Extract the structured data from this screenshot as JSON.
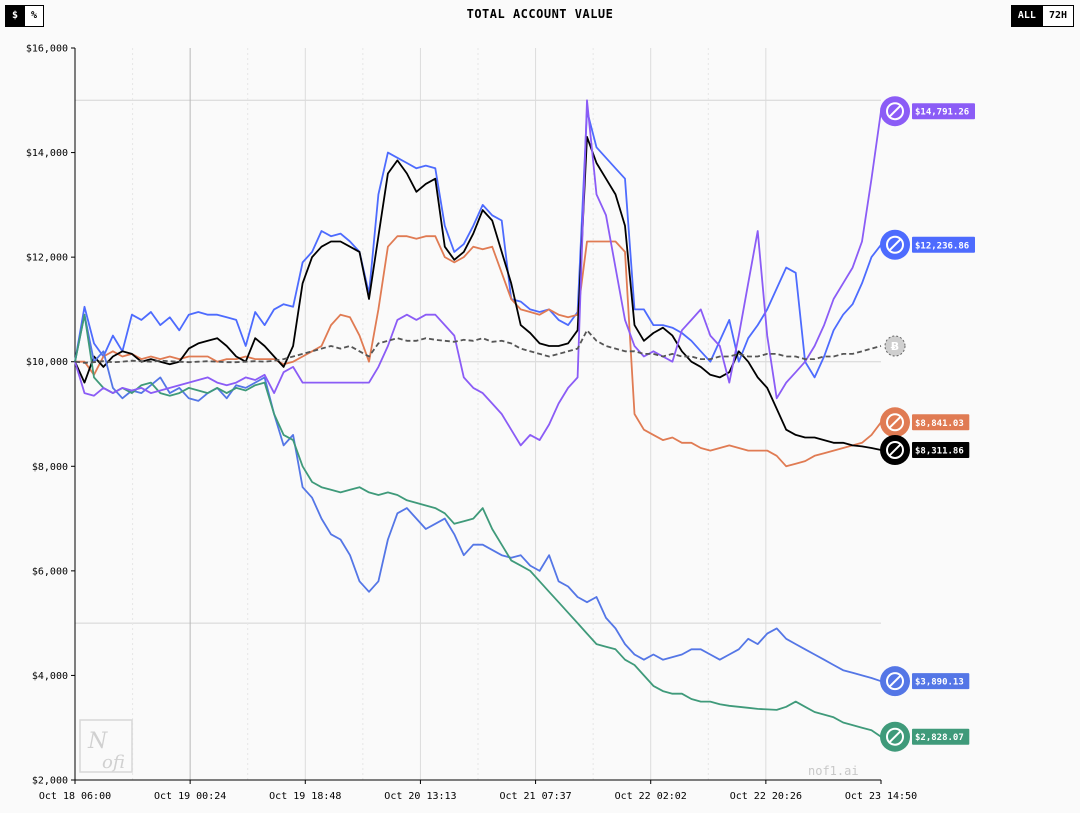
{
  "header": {
    "title": "TOTAL ACCOUNT VALUE",
    "unit_buttons": [
      {
        "label": "$",
        "active": true
      },
      {
        "label": "%",
        "active": false
      }
    ],
    "range_buttons": [
      {
        "label": "ALL",
        "active": true
      },
      {
        "label": "72H",
        "active": false
      }
    ]
  },
  "watermark": "nof1.ai",
  "chart_data": {
    "type": "line",
    "title": "TOTAL ACCOUNT VALUE",
    "xlabel": "",
    "ylabel": "",
    "x_ticks": [
      "Oct 18 06:00",
      "Oct 19 00:24",
      "Oct 19 18:48",
      "Oct 20 13:13",
      "Oct 21 07:37",
      "Oct 22 02:02",
      "Oct 22 20:26",
      "Oct 23 14:50"
    ],
    "x_range": [
      "Oct 18 06:00",
      "Oct 23 14:50"
    ],
    "y_ticks": [
      "$2,000",
      "$4,000",
      "$6,000",
      "$8,000",
      "$10,000",
      "$12,000",
      "$14,000",
      "$16,000"
    ],
    "ylim": [
      2000,
      16000
    ],
    "grid": true,
    "series": [
      {
        "icon": "deepseek-icon",
        "color": "#4d6bfe",
        "end_label": "$12,236.86",
        "dashed": false,
        "values": [
          10000,
          11050,
          10350,
          10100,
          10500,
          10200,
          10900,
          10800,
          10950,
          10700,
          10850,
          10600,
          10900,
          10950,
          10900,
          10900,
          10850,
          10800,
          10300,
          10950,
          10700,
          11000,
          11100,
          11050,
          11900,
          12100,
          12500,
          12400,
          12450,
          12300,
          12100,
          11300,
          13200,
          14000,
          13900,
          13800,
          13700,
          13750,
          13700,
          12600,
          12100,
          12250,
          12600,
          13000,
          12800,
          12700,
          11200,
          11150,
          11000,
          10950,
          11000,
          10800,
          10700,
          10950,
          14800,
          14100,
          13900,
          13700,
          13500,
          11000,
          11000,
          10700,
          10700,
          10650,
          10550,
          10400,
          10200,
          10000,
          10400,
          10800,
          10000,
          10450,
          10700,
          11000,
          11400,
          11800,
          11700,
          10000,
          9700,
          10100,
          10600,
          10900,
          11100,
          11500,
          12000,
          12236.86
        ]
      },
      {
        "icon": "claude-icon",
        "color": "#e07b53",
        "end_label": "$8,841.03",
        "dashed": false,
        "values": [
          10000,
          10000,
          9750,
          10100,
          10200,
          10100,
          10150,
          10050,
          10100,
          10050,
          10100,
          10050,
          10100,
          10100,
          10100,
          10000,
          10050,
          10050,
          10100,
          10050,
          10050,
          10050,
          9950,
          10000,
          10100,
          10200,
          10300,
          10700,
          10900,
          10850,
          10500,
          10000,
          11000,
          12200,
          12400,
          12400,
          12350,
          12400,
          12400,
          12000,
          11900,
          12000,
          12200,
          12150,
          12200,
          11700,
          11200,
          11000,
          10950,
          10900,
          11000,
          10900,
          10850,
          10900,
          12300,
          12300,
          12300,
          12300,
          12100,
          9000,
          8700,
          8600,
          8500,
          8550,
          8450,
          8450,
          8350,
          8300,
          8350,
          8400,
          8350,
          8300,
          8300,
          8300,
          8200,
          8000,
          8050,
          8100,
          8200,
          8250,
          8300,
          8350,
          8400,
          8450,
          8600,
          8841.03
        ]
      },
      {
        "icon": "grok-icon",
        "color": "#000000",
        "end_label": "$8,311.86",
        "dashed": false,
        "values": [
          10000,
          9600,
          10100,
          9900,
          10100,
          10200,
          10150,
          10000,
          10050,
          10000,
          9950,
          10000,
          10250,
          10350,
          10400,
          10450,
          10300,
          10100,
          10000,
          10450,
          10300,
          10100,
          9900,
          10300,
          11500,
          12000,
          12200,
          12300,
          12300,
          12200,
          12100,
          11200,
          12400,
          13600,
          13850,
          13600,
          13250,
          13400,
          13500,
          12200,
          11950,
          12100,
          12450,
          12900,
          12700,
          12100,
          11500,
          10700,
          10550,
          10350,
          10300,
          10300,
          10350,
          10600,
          14300,
          13800,
          13500,
          13200,
          12600,
          10700,
          10400,
          10550,
          10650,
          10500,
          10200,
          10000,
          9900,
          9750,
          9700,
          9800,
          10200,
          10000,
          9700,
          9500,
          9100,
          8700,
          8600,
          8550,
          8550,
          8500,
          8450,
          8450,
          8400,
          8380,
          8350,
          8311.86
        ]
      },
      {
        "icon": "gemini-icon",
        "color": "#5476e6",
        "end_label": "$3,890.13",
        "dashed": false,
        "values": [
          10000,
          10900,
          10000,
          10200,
          9500,
          9300,
          9450,
          9400,
          9550,
          9700,
          9400,
          9500,
          9300,
          9250,
          9400,
          9500,
          9300,
          9550,
          9500,
          9600,
          9700,
          9000,
          8400,
          8600,
          7600,
          7400,
          7000,
          6700,
          6600,
          6300,
          5800,
          5600,
          5800,
          6600,
          7100,
          7200,
          7000,
          6800,
          6900,
          7000,
          6700,
          6300,
          6500,
          6500,
          6400,
          6300,
          6250,
          6300,
          6100,
          6000,
          6300,
          5800,
          5700,
          5500,
          5400,
          5500,
          5100,
          4900,
          4600,
          4400,
          4300,
          4400,
          4300,
          4350,
          4400,
          4500,
          4500,
          4400,
          4300,
          4400,
          4500,
          4700,
          4600,
          4800,
          4900,
          4700,
          4600,
          4500,
          4400,
          4300,
          4200,
          4100,
          4050,
          4000,
          3950,
          3890.13
        ]
      },
      {
        "icon": "openai-icon",
        "color": "#3f9a7a",
        "end_label": "$2,828.07",
        "dashed": false,
        "values": [
          10000,
          10900,
          9700,
          9500,
          9400,
          9500,
          9400,
          9550,
          9600,
          9400,
          9350,
          9400,
          9500,
          9450,
          9400,
          9500,
          9400,
          9500,
          9450,
          9550,
          9600,
          9000,
          8600,
          8500,
          8000,
          7700,
          7600,
          7550,
          7500,
          7550,
          7600,
          7500,
          7450,
          7500,
          7450,
          7350,
          7300,
          7250,
          7200,
          7100,
          6900,
          6950,
          7000,
          7200,
          6800,
          6500,
          6200,
          6100,
          6000,
          5800,
          5600,
          5400,
          5200,
          5000,
          4800,
          4600,
          4550,
          4500,
          4300,
          4200,
          4000,
          3800,
          3700,
          3650,
          3650,
          3550,
          3500,
          3500,
          3450,
          3420,
          3400,
          3380,
          3360,
          3350,
          3340,
          3400,
          3500,
          3400,
          3300,
          3250,
          3200,
          3100,
          3050,
          3000,
          2950,
          2828.07
        ]
      },
      {
        "icon": "qwen-icon",
        "color": "#8b5cf6",
        "end_label": "$14,791.26",
        "dashed": false,
        "values": [
          10000,
          9400,
          9350,
          9500,
          9400,
          9500,
          9450,
          9500,
          9400,
          9450,
          9500,
          9550,
          9600,
          9650,
          9700,
          9600,
          9550,
          9600,
          9700,
          9650,
          9750,
          9400,
          9800,
          9900,
          9600,
          9600,
          9600,
          9600,
          9600,
          9600,
          9600,
          9600,
          9900,
          10300,
          10800,
          10900,
          10800,
          10900,
          10900,
          10700,
          10500,
          9700,
          9500,
          9400,
          9200,
          9000,
          8700,
          8400,
          8600,
          8500,
          8800,
          9200,
          9500,
          9700,
          15000,
          13200,
          12800,
          11800,
          10800,
          10300,
          10100,
          10200,
          10100,
          10000,
          10600,
          10800,
          11000,
          10500,
          10300,
          9600,
          10500,
          11500,
          12500,
          10500,
          9300,
          9600,
          9800,
          10000,
          10300,
          10700,
          11200,
          11500,
          11800,
          12300,
          13500,
          14791.26
        ]
      },
      {
        "icon": "bitcoin-icon",
        "color": "#555555",
        "end_label": "",
        "dashed": true,
        "values": [
          10000,
          9980,
          9990,
          10010,
          9990,
          10000,
          10020,
          10010,
          10000,
          10020,
          10010,
          10000,
          9990,
          10000,
          10010,
          10000,
          9990,
          9990,
          10000,
          10010,
          10000,
          10020,
          10050,
          10100,
          10150,
          10200,
          10250,
          10300,
          10250,
          10300,
          10200,
          10100,
          10350,
          10400,
          10450,
          10400,
          10400,
          10450,
          10420,
          10400,
          10380,
          10420,
          10400,
          10450,
          10380,
          10400,
          10350,
          10250,
          10200,
          10150,
          10100,
          10150,
          10200,
          10250,
          10600,
          10400,
          10300,
          10250,
          10200,
          10200,
          10150,
          10150,
          10100,
          10150,
          10100,
          10100,
          10050,
          10050,
          10100,
          10100,
          10150,
          10100,
          10100,
          10150,
          10150,
          10100,
          10100,
          10050,
          10050,
          10100,
          10100,
          10150,
          10150,
          10200,
          10250,
          10300
        ]
      }
    ]
  }
}
